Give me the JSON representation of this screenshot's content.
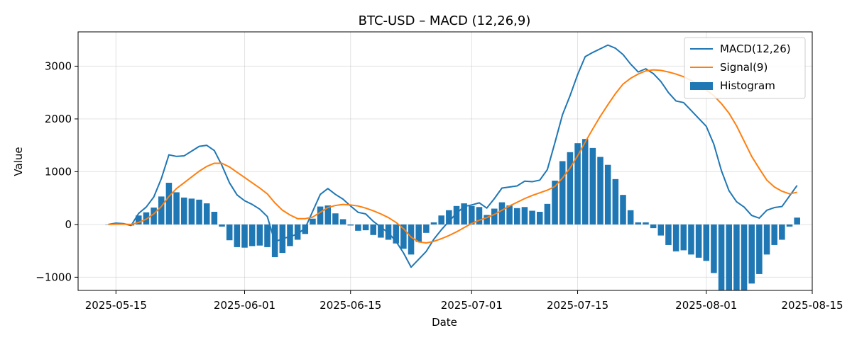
{
  "chart_data": {
    "type": "line",
    "title": "BTC-USD – MACD (12,26,9)",
    "xlabel": "Date",
    "ylabel": "Value",
    "grid": true,
    "legend_position": "top-right",
    "x_start_date": "2025-05-14",
    "xlim": [
      "2025-05-10",
      "2025-08-15"
    ],
    "ylim": [
      -1250,
      3650
    ],
    "x_ticks": [
      "2025-05-15",
      "2025-06-01",
      "2025-06-15",
      "2025-07-01",
      "2025-07-15",
      "2025-08-01",
      "2025-08-15"
    ],
    "y_ticks": [
      -1000,
      0,
      1000,
      2000,
      3000
    ],
    "y_tick_labels": [
      "−1000",
      "0",
      "1000",
      "2000",
      "3000"
    ],
    "series": [
      {
        "name": "MACD(12,26)",
        "kind": "line",
        "color": "#1f77b4",
        "values": [
          0,
          25,
          15,
          -20,
          210,
          330,
          520,
          870,
          1320,
          1290,
          1300,
          1390,
          1480,
          1500,
          1400,
          1120,
          790,
          560,
          450,
          380,
          290,
          150,
          -330,
          -270,
          -230,
          -180,
          -70,
          250,
          570,
          680,
          570,
          480,
          350,
          230,
          200,
          60,
          -50,
          -160,
          -320,
          -540,
          -810,
          -660,
          -510,
          -280,
          -100,
          60,
          210,
          340,
          370,
          410,
          310,
          490,
          690,
          710,
          730,
          820,
          810,
          840,
          1040,
          1550,
          2080,
          2440,
          2840,
          3180,
          3260,
          3330,
          3400,
          3340,
          3220,
          3040,
          2890,
          2950,
          2860,
          2710,
          2500,
          2340,
          2310,
          2160,
          2010,
          1860,
          1520,
          1020,
          640,
          430,
          330,
          170,
          120,
          270,
          320,
          340,
          540,
          740
        ]
      },
      {
        "name": "Signal(9)",
        "kind": "line",
        "color": "#ff7f0e",
        "values": [
          0,
          5,
          5,
          0,
          40,
          100,
          200,
          340,
          530,
          680,
          790,
          900,
          1010,
          1100,
          1160,
          1160,
          1090,
          990,
          890,
          790,
          690,
          580,
          410,
          270,
          180,
          110,
          110,
          140,
          230,
          320,
          360,
          380,
          370,
          350,
          310,
          260,
          200,
          130,
          40,
          -80,
          -240,
          -330,
          -350,
          -320,
          -270,
          -210,
          -140,
          -60,
          20,
          80,
          130,
          190,
          270,
          350,
          420,
          490,
          550,
          600,
          650,
          720,
          880,
          1070,
          1300,
          1560,
          1810,
          2050,
          2270,
          2480,
          2660,
          2770,
          2850,
          2910,
          2930,
          2920,
          2890,
          2850,
          2800,
          2730,
          2640,
          2550,
          2440,
          2290,
          2110,
          1870,
          1580,
          1290,
          1060,
          840,
          710,
          630,
          580,
          610
        ]
      },
      {
        "name": "Histogram",
        "kind": "bar",
        "color": "#1f77b4",
        "values": [
          0,
          20,
          10,
          -20,
          170,
          230,
          320,
          530,
          790,
          610,
          510,
          490,
          470,
          400,
          240,
          -40,
          -300,
          -430,
          -440,
          -410,
          -400,
          -430,
          -620,
          -540,
          -410,
          -290,
          -180,
          110,
          340,
          360,
          210,
          100,
          -20,
          -120,
          -110,
          -200,
          -250,
          -290,
          -360,
          -460,
          -570,
          -330,
          -160,
          40,
          170,
          270,
          350,
          400,
          350,
          330,
          180,
          300,
          420,
          360,
          310,
          330,
          260,
          240,
          390,
          830,
          1200,
          1370,
          1540,
          1620,
          1450,
          1280,
          1130,
          860,
          560,
          270,
          40,
          40,
          -70,
          -210,
          -390,
          -510,
          -490,
          -570,
          -630,
          -690,
          -920,
          -1270,
          -1470,
          -1440,
          -1250,
          -1120,
          -940,
          -570,
          -390,
          -290,
          -40,
          130
        ]
      }
    ]
  }
}
